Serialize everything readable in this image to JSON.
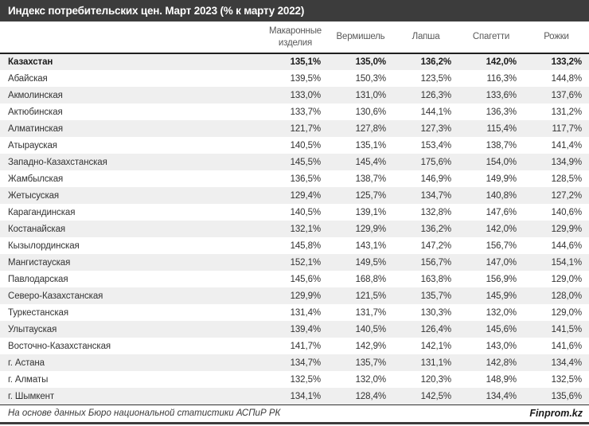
{
  "title": "Индекс потребительских цен. Март 2023 (% к марту 2022)",
  "footer": {
    "source": "На основе данных Бюро национальной статистики АСПиР РК",
    "brand": "Finprom.kz"
  },
  "colors": {
    "title_bar": "#3c3c3c",
    "stripe": "#efefef",
    "header_text": "#595959",
    "body_text": "#333333",
    "header_border": "#1f1f1f"
  },
  "chart_data": {
    "type": "table",
    "title": "Индекс потребительских цен. Март 2023 (% к марту 2022)",
    "columns": [
      "",
      "Макаронные изделия",
      "Вермишель",
      "Лапша",
      "Спагетти",
      "Рожки"
    ],
    "rows": [
      {
        "region": "Казахстан",
        "values": [
          "135,1%",
          "135,0%",
          "136,2%",
          "142,0%",
          "133,2%"
        ],
        "bold": true
      },
      {
        "region": "Абайская",
        "values": [
          "139,5%",
          "150,3%",
          "123,5%",
          "116,3%",
          "144,8%"
        ]
      },
      {
        "region": "Акмолинская",
        "values": [
          "133,0%",
          "131,0%",
          "126,3%",
          "133,6%",
          "137,6%"
        ]
      },
      {
        "region": "Актюбинская",
        "values": [
          "133,7%",
          "130,6%",
          "144,1%",
          "136,3%",
          "131,2%"
        ]
      },
      {
        "region": "Алматинская",
        "values": [
          "121,7%",
          "127,8%",
          "127,3%",
          "115,4%",
          "117,7%"
        ]
      },
      {
        "region": "Атырауская",
        "values": [
          "140,5%",
          "135,1%",
          "153,4%",
          "138,7%",
          "141,4%"
        ]
      },
      {
        "region": "Западно-Казахстанская",
        "values": [
          "145,5%",
          "145,4%",
          "175,6%",
          "154,0%",
          "134,9%"
        ]
      },
      {
        "region": "Жамбылская",
        "values": [
          "136,5%",
          "138,7%",
          "146,9%",
          "149,9%",
          "128,5%"
        ]
      },
      {
        "region": "Жетысуская",
        "values": [
          "129,4%",
          "125,7%",
          "134,7%",
          "140,8%",
          "127,2%"
        ]
      },
      {
        "region": "Карагандинская",
        "values": [
          "140,5%",
          "139,1%",
          "132,8%",
          "147,6%",
          "140,6%"
        ]
      },
      {
        "region": "Костанайская",
        "values": [
          "132,1%",
          "129,9%",
          "136,2%",
          "142,0%",
          "129,9%"
        ]
      },
      {
        "region": "Кызылординская",
        "values": [
          "145,8%",
          "143,1%",
          "147,2%",
          "156,7%",
          "144,6%"
        ]
      },
      {
        "region": "Мангистауская",
        "values": [
          "152,1%",
          "149,5%",
          "156,7%",
          "147,0%",
          "154,1%"
        ]
      },
      {
        "region": "Павлодарская",
        "values": [
          "145,6%",
          "168,8%",
          "163,8%",
          "156,9%",
          "129,0%"
        ]
      },
      {
        "region": "Северо-Казахстанская",
        "values": [
          "129,9%",
          "121,5%",
          "135,7%",
          "145,9%",
          "128,0%"
        ]
      },
      {
        "region": "Туркестанская",
        "values": [
          "131,4%",
          "131,7%",
          "130,3%",
          "132,0%",
          "129,0%"
        ]
      },
      {
        "region": "Улытауская",
        "values": [
          "139,4%",
          "140,5%",
          "126,4%",
          "145,6%",
          "141,5%"
        ]
      },
      {
        "region": "Восточно-Казахстанская",
        "values": [
          "141,7%",
          "142,9%",
          "142,1%",
          "143,0%",
          "141,6%"
        ]
      },
      {
        "region": "г. Астана",
        "values": [
          "134,7%",
          "135,7%",
          "131,1%",
          "142,8%",
          "134,4%"
        ]
      },
      {
        "region": "г. Алматы",
        "values": [
          "132,5%",
          "132,0%",
          "120,3%",
          "148,9%",
          "132,5%"
        ]
      },
      {
        "region": "г. Шымкент",
        "values": [
          "134,1%",
          "128,4%",
          "142,5%",
          "134,4%",
          "135,6%"
        ]
      }
    ]
  }
}
